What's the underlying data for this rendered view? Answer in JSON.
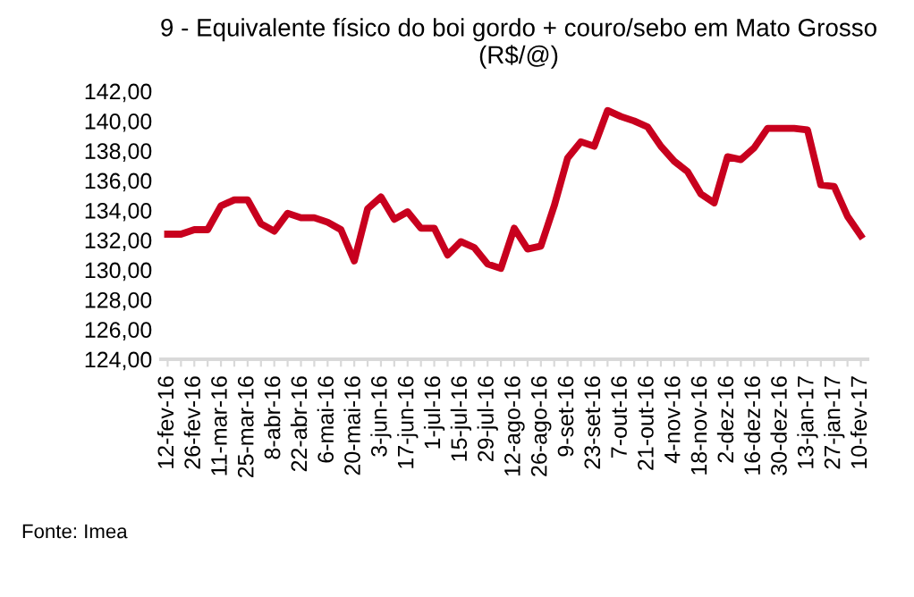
{
  "chart_data": {
    "type": "line",
    "title": "9 - Equivalente físico do boi gordo + couro/sebo em Mato Grosso (R$/@)",
    "categories": [
      "12-fev-16",
      null,
      "26-fev-16",
      null,
      "11-mar-16",
      null,
      "25-mar-16",
      null,
      "8-abr-16",
      null,
      "22-abr-16",
      null,
      "6-mai-16",
      null,
      "20-mai-16",
      null,
      "3-jun-16",
      null,
      "17-jun-16",
      null,
      "1-jul-16",
      null,
      "15-jul-16",
      null,
      "29-jul-16",
      null,
      "12-ago-16",
      null,
      "26-ago-16",
      null,
      "9-set-16",
      null,
      "23-set-16",
      null,
      "7-out-16",
      null,
      "21-out-16",
      null,
      "4-nov-16",
      null,
      "18-nov-16",
      null,
      "2-dez-16",
      null,
      "16-dez-16",
      null,
      "30-dez-16",
      null,
      "13-jan-17",
      null,
      "27-jan-17",
      null,
      "10-fev-17"
    ],
    "series": [
      {
        "color": "#c8001e",
        "values": [
          132.4,
          132.4,
          132.7,
          132.7,
          134.3,
          134.7,
          134.7,
          133.1,
          132.6,
          133.8,
          133.5,
          133.5,
          133.2,
          132.7,
          130.6,
          134.1,
          134.9,
          133.4,
          133.9,
          132.8,
          132.8,
          131.0,
          131.9,
          131.5,
          130.4,
          130.1,
          132.8,
          131.4,
          131.6,
          134.3,
          137.5,
          138.6,
          138.3,
          140.7,
          140.3,
          140.0,
          139.6,
          138.3,
          137.3,
          136.6,
          135.1,
          134.5,
          137.6,
          137.4,
          138.2,
          139.5,
          139.5,
          139.5,
          139.4,
          135.7,
          135.6,
          133.6,
          132.3
        ]
      }
    ],
    "ylim": [
      124,
      142
    ],
    "yticks": [
      {
        "value": 124,
        "label": "124,00"
      },
      {
        "value": 126,
        "label": "126,00"
      },
      {
        "value": 128,
        "label": "128,00"
      },
      {
        "value": 130,
        "label": "130,00"
      },
      {
        "value": 132,
        "label": "132,00"
      },
      {
        "value": 134,
        "label": "134,00"
      },
      {
        "value": 136,
        "label": "136,00"
      },
      {
        "value": 138,
        "label": "138,00"
      },
      {
        "value": 140,
        "label": "140,00"
      },
      {
        "value": 142,
        "label": "142,00"
      }
    ],
    "grid": false,
    "legend": false,
    "marker": "none",
    "line_style": "solid",
    "annotations": [
      "Fonte: Imea"
    ]
  }
}
